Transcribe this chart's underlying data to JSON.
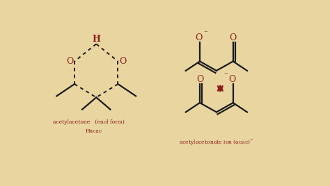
{
  "bg_color": "#e8d5a0",
  "dark_color": "#1a1a1a",
  "red_color": "#8b1a1a",
  "title_label1": "acetylacetone   (enol form)",
  "title_label2": "Hacac",
  "title_label3": "acetylacetonate ion (acac)",
  "figsize": [
    4.74,
    2.68
  ],
  "dpi": 100
}
